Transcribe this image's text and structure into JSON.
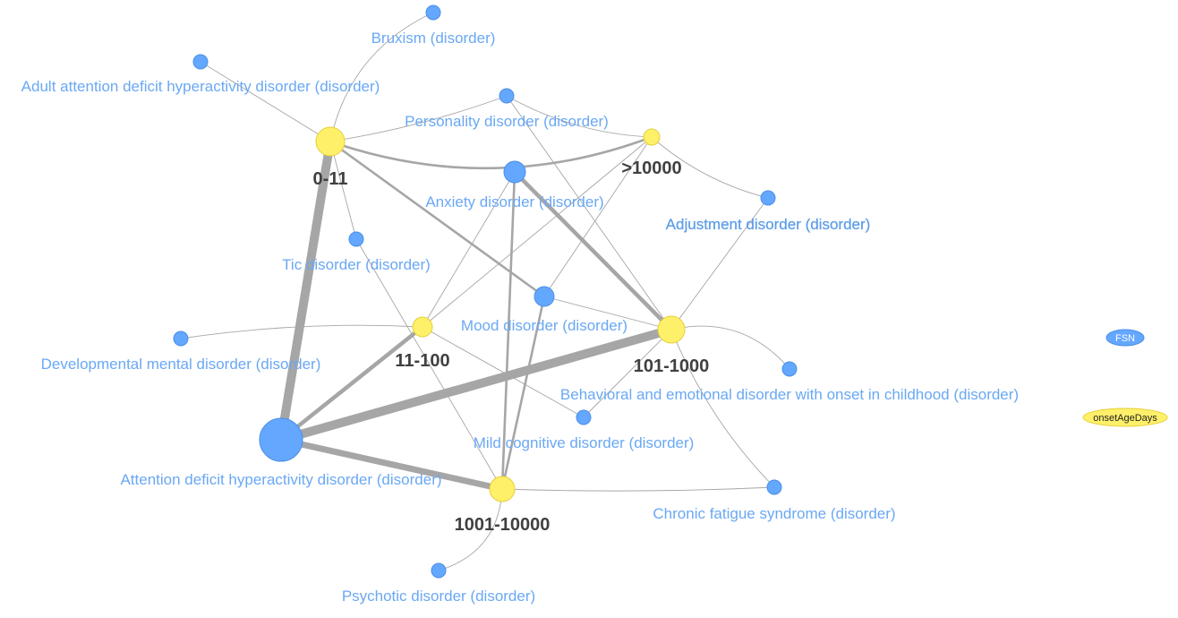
{
  "diagram": {
    "type": "network",
    "nodes": [
      {
        "id": "age_0_11",
        "label": "0-11",
        "group": "onsetAgeDays"
      },
      {
        "id": "age_11_100",
        "label": "11-100",
        "group": "onsetAgeDays"
      },
      {
        "id": "age_101_1000",
        "label": "101-1000",
        "group": "onsetAgeDays"
      },
      {
        "id": "age_1001_10000",
        "label": "1001-10000",
        "group": "onsetAgeDays"
      },
      {
        "id": "age_gt_10000",
        "label": ">10000",
        "group": "onsetAgeDays"
      },
      {
        "id": "bruxism",
        "label": "Bruxism (disorder)",
        "group": "FSN"
      },
      {
        "id": "adult_adhd",
        "label": "Adult attention deficit hyperactivity disorder (disorder)",
        "group": "FSN"
      },
      {
        "id": "personality",
        "label": "Personality disorder (disorder)",
        "group": "FSN"
      },
      {
        "id": "anxiety",
        "label": "Anxiety disorder (disorder)",
        "group": "FSN"
      },
      {
        "id": "adjustment",
        "label": "Adjustment disorder (disorder)",
        "group": "FSN"
      },
      {
        "id": "tic",
        "label": "Tic disorder (disorder)",
        "group": "FSN"
      },
      {
        "id": "mood",
        "label": "Mood disorder (disorder)",
        "group": "FSN"
      },
      {
        "id": "developmental",
        "label": "Developmental mental disorder (disorder)",
        "group": "FSN"
      },
      {
        "id": "behavioral",
        "label": "Behavioral and emotional disorder with onset in childhood (disorder)",
        "group": "FSN"
      },
      {
        "id": "mild_cognitive",
        "label": "Mild cognitive disorder (disorder)",
        "group": "FSN"
      },
      {
        "id": "adhd",
        "label": "Attention deficit hyperactivity disorder (disorder)",
        "group": "FSN"
      },
      {
        "id": "chronic_fatigue",
        "label": "Chronic fatigue syndrome (disorder)",
        "group": "FSN"
      },
      {
        "id": "psychotic",
        "label": "Psychotic disorder (disorder)",
        "group": "FSN"
      }
    ],
    "edges": [
      {
        "from": "age_0_11",
        "to": "adhd",
        "weight": 5
      },
      {
        "from": "age_101_1000",
        "to": "adhd",
        "weight": 5
      },
      {
        "from": "age_1001_10000",
        "to": "adhd",
        "weight": 4
      },
      {
        "from": "age_11_100",
        "to": "adhd",
        "weight": 3
      },
      {
        "from": "anxiety",
        "to": "age_101_1000",
        "weight": 3
      },
      {
        "from": "age_0_11",
        "to": "mood",
        "weight": 2
      },
      {
        "from": "age_0_11",
        "to": "age_gt_10000",
        "weight": 2
      },
      {
        "from": "mood",
        "to": "age_1001_10000",
        "weight": 2
      },
      {
        "from": "anxiety",
        "to": "age_1001_10000",
        "weight": 2
      },
      {
        "from": "mood",
        "to": "age_101_1000",
        "weight": 1
      },
      {
        "from": "age_0_11",
        "to": "bruxism",
        "weight": 1
      },
      {
        "from": "age_0_11",
        "to": "adult_adhd",
        "weight": 1
      },
      {
        "from": "age_0_11",
        "to": "personality",
        "weight": 1
      },
      {
        "from": "age_0_11",
        "to": "tic",
        "weight": 1
      },
      {
        "from": "personality",
        "to": "age_gt_10000",
        "weight": 1
      },
      {
        "from": "personality",
        "to": "age_101_1000",
        "weight": 1
      },
      {
        "from": "age_gt_10000",
        "to": "adjustment",
        "weight": 1
      },
      {
        "from": "age_gt_10000",
        "to": "age_11_100",
        "weight": 1
      },
      {
        "from": "age_gt_10000",
        "to": "mood",
        "weight": 1
      },
      {
        "from": "anxiety",
        "to": "age_11_100",
        "weight": 1
      },
      {
        "from": "tic",
        "to": "age_1001_10000",
        "weight": 1
      },
      {
        "from": "age_11_100",
        "to": "developmental",
        "weight": 1
      },
      {
        "from": "age_11_100",
        "to": "mild_cognitive",
        "weight": 1
      },
      {
        "from": "age_101_1000",
        "to": "adjustment",
        "weight": 1
      },
      {
        "from": "age_101_1000",
        "to": "behavioral",
        "weight": 1
      },
      {
        "from": "age_101_1000",
        "to": "mild_cognitive",
        "weight": 1
      },
      {
        "from": "age_101_1000",
        "to": "chronic_fatigue",
        "weight": 1
      },
      {
        "from": "age_1001_10000",
        "to": "chronic_fatigue",
        "weight": 1
      },
      {
        "from": "age_1001_10000",
        "to": "psychotic",
        "weight": 1
      }
    ]
  },
  "legend": [
    {
      "label": "FSN",
      "color": "#64a7ff"
    },
    {
      "label": "onsetAgeDays",
      "color": "#fff06a"
    }
  ],
  "colors": {
    "fsn_node": "#64a7ff",
    "age_node": "#fff06a",
    "edge": "#a6a6a6"
  }
}
